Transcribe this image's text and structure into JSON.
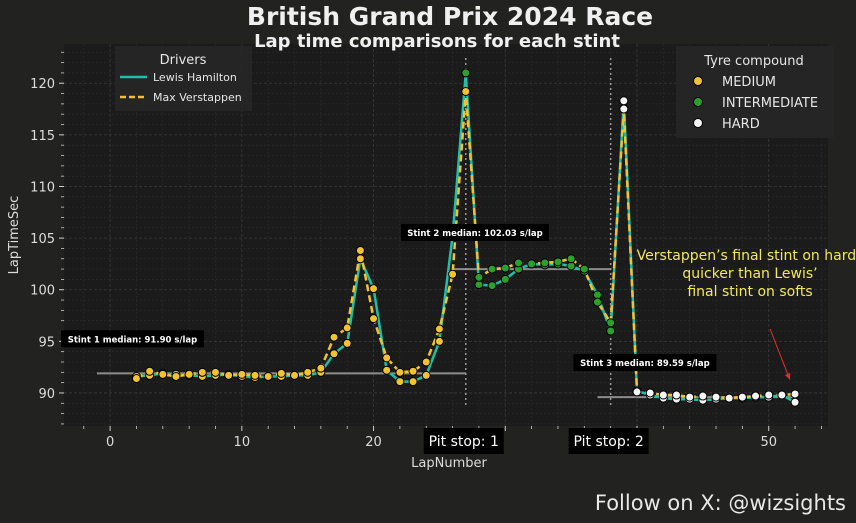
{
  "chart_data": {
    "type": "line",
    "title": "British Grand Prix 2024 Race",
    "subtitle": "Lap time comparisons for each stint",
    "xlabel": "LapNumber",
    "ylabel": "LapTimeSec",
    "xlim": [
      -3.5,
      54.5
    ],
    "ylim": [
      86.8,
      123.8
    ],
    "xticks": [
      0,
      10,
      20,
      30,
      40,
      50
    ],
    "xtick_labels": [
      "0",
      "10",
      "20",
      "",
      "",
      "50"
    ],
    "yticks": [
      90,
      95,
      100,
      105,
      110,
      115,
      120
    ],
    "grid": true,
    "drivers_legend_title": "Drivers",
    "compound_legend_title": "Tyre compound",
    "compound_colors": {
      "MEDIUM": "#f2c230",
      "INTERMEDIATE": "#2ca02c",
      "HARD": "#f5f5f5"
    },
    "series": [
      {
        "name": "Lewis Hamilton",
        "color": "#1fbfa8",
        "dash": "solid",
        "x": [
          2,
          3,
          4,
          5,
          6,
          7,
          8,
          9,
          10,
          11,
          12,
          13,
          14,
          15,
          16,
          17,
          18,
          19,
          20,
          21,
          22,
          23,
          24,
          25,
          26,
          27,
          28,
          29,
          30,
          31,
          32,
          33,
          34,
          35,
          36,
          37,
          38,
          39,
          40,
          41,
          42,
          43,
          44,
          45,
          46,
          47,
          48,
          49,
          50,
          51,
          52
        ],
        "y": [
          91.6,
          91.7,
          91.9,
          91.8,
          91.7,
          91.6,
          91.7,
          91.8,
          91.6,
          91.5,
          91.6,
          91.6,
          91.7,
          91.7,
          92.0,
          93.8,
          94.8,
          103.0,
          100.1,
          92.2,
          91.1,
          91.1,
          91.7,
          95.0,
          105.2,
          121.0,
          100.5,
          100.4,
          101.0,
          102.0,
          102.5,
          102.4,
          102.5,
          102.3,
          101.8,
          99.5,
          96.0,
          118.3,
          90.2,
          89.8,
          89.5,
          89.4,
          89.4,
          89.3,
          89.4,
          89.5,
          89.5,
          89.6,
          89.6,
          89.8,
          89.1
        ],
        "compound": [
          "MEDIUM",
          "MEDIUM",
          "MEDIUM",
          "MEDIUM",
          "MEDIUM",
          "MEDIUM",
          "MEDIUM",
          "MEDIUM",
          "MEDIUM",
          "MEDIUM",
          "MEDIUM",
          "MEDIUM",
          "MEDIUM",
          "MEDIUM",
          "MEDIUM",
          "MEDIUM",
          "MEDIUM",
          "MEDIUM",
          "MEDIUM",
          "MEDIUM",
          "MEDIUM",
          "MEDIUM",
          "MEDIUM",
          "MEDIUM",
          "MEDIUM",
          "INTERMEDIATE",
          "INTERMEDIATE",
          "INTERMEDIATE",
          "INTERMEDIATE",
          "INTERMEDIATE",
          "INTERMEDIATE",
          "INTERMEDIATE",
          "INTERMEDIATE",
          "INTERMEDIATE",
          "INTERMEDIATE",
          "INTERMEDIATE",
          "INTERMEDIATE",
          "HARD",
          "HARD",
          "HARD",
          "HARD",
          "HARD",
          "HARD",
          "HARD",
          "HARD",
          "HARD",
          "HARD",
          "HARD",
          "HARD",
          "HARD",
          "HARD"
        ]
      },
      {
        "name": "Max Verstappen",
        "color": "#f2c230",
        "dash": "dashed",
        "x": [
          2,
          3,
          4,
          5,
          6,
          7,
          8,
          9,
          10,
          11,
          12,
          13,
          14,
          15,
          16,
          17,
          18,
          19,
          20,
          21,
          22,
          23,
          24,
          25,
          26,
          27,
          28,
          29,
          30,
          31,
          32,
          33,
          34,
          35,
          36,
          37,
          38,
          39,
          40,
          41,
          42,
          43,
          44,
          45,
          46,
          47,
          48,
          49,
          50,
          51,
          52
        ],
        "y": [
          91.4,
          92.1,
          91.8,
          91.6,
          91.8,
          92.0,
          92.0,
          91.7,
          91.8,
          91.7,
          91.6,
          91.9,
          91.7,
          92.0,
          92.4,
          95.4,
          96.3,
          103.8,
          97.2,
          93.4,
          92.0,
          92.1,
          93.0,
          96.2,
          101.5,
          119.2,
          101.2,
          102.0,
          102.1,
          102.6,
          102.5,
          102.6,
          102.7,
          103.0,
          102.0,
          98.8,
          96.8,
          117.5,
          90.1,
          90.0,
          89.8,
          89.8,
          89.6,
          89.7,
          89.6,
          89.5,
          89.6,
          89.7,
          89.8,
          89.8,
          89.9
        ],
        "compound": [
          "MEDIUM",
          "MEDIUM",
          "MEDIUM",
          "MEDIUM",
          "MEDIUM",
          "MEDIUM",
          "MEDIUM",
          "MEDIUM",
          "MEDIUM",
          "MEDIUM",
          "MEDIUM",
          "MEDIUM",
          "MEDIUM",
          "MEDIUM",
          "MEDIUM",
          "MEDIUM",
          "MEDIUM",
          "MEDIUM",
          "MEDIUM",
          "MEDIUM",
          "MEDIUM",
          "MEDIUM",
          "MEDIUM",
          "MEDIUM",
          "MEDIUM",
          "MEDIUM",
          "INTERMEDIATE",
          "INTERMEDIATE",
          "INTERMEDIATE",
          "INTERMEDIATE",
          "INTERMEDIATE",
          "INTERMEDIATE",
          "INTERMEDIATE",
          "INTERMEDIATE",
          "INTERMEDIATE",
          "INTERMEDIATE",
          "INTERMEDIATE",
          "HARD",
          "HARD",
          "HARD",
          "HARD",
          "HARD",
          "HARD",
          "HARD",
          "HARD",
          "HARD",
          "HARD",
          "HARD",
          "HARD",
          "HARD",
          "HARD"
        ]
      }
    ],
    "medians": [
      {
        "label": "Stint 1 median: 91.90 s/lap",
        "value": 91.9,
        "x_start": -1,
        "x_end": 27
      },
      {
        "label": "Stint 2 median: 102.03 s/lap",
        "value": 102.0,
        "x_start": 26,
        "x_end": 38
      },
      {
        "label": "Stint 3 median: 89.59 s/lap",
        "value": 89.6,
        "x_start": 37,
        "x_end": 52
      }
    ],
    "pit_stops": [
      {
        "label": "Pit stop: 1",
        "lap": 27
      },
      {
        "label": "Pit stop: 2",
        "lap": 38
      }
    ],
    "annotation": {
      "lines": [
        "Verstappen’s final stint on hards",
        "quicker than Lewis’",
        "final stint on softs"
      ],
      "color": "#f2e85a",
      "arrow_from": [
        50.1,
        96.2
      ],
      "arrow_to": [
        51.6,
        91.3
      ]
    }
  },
  "footer": "Follow on X: @wizsights"
}
